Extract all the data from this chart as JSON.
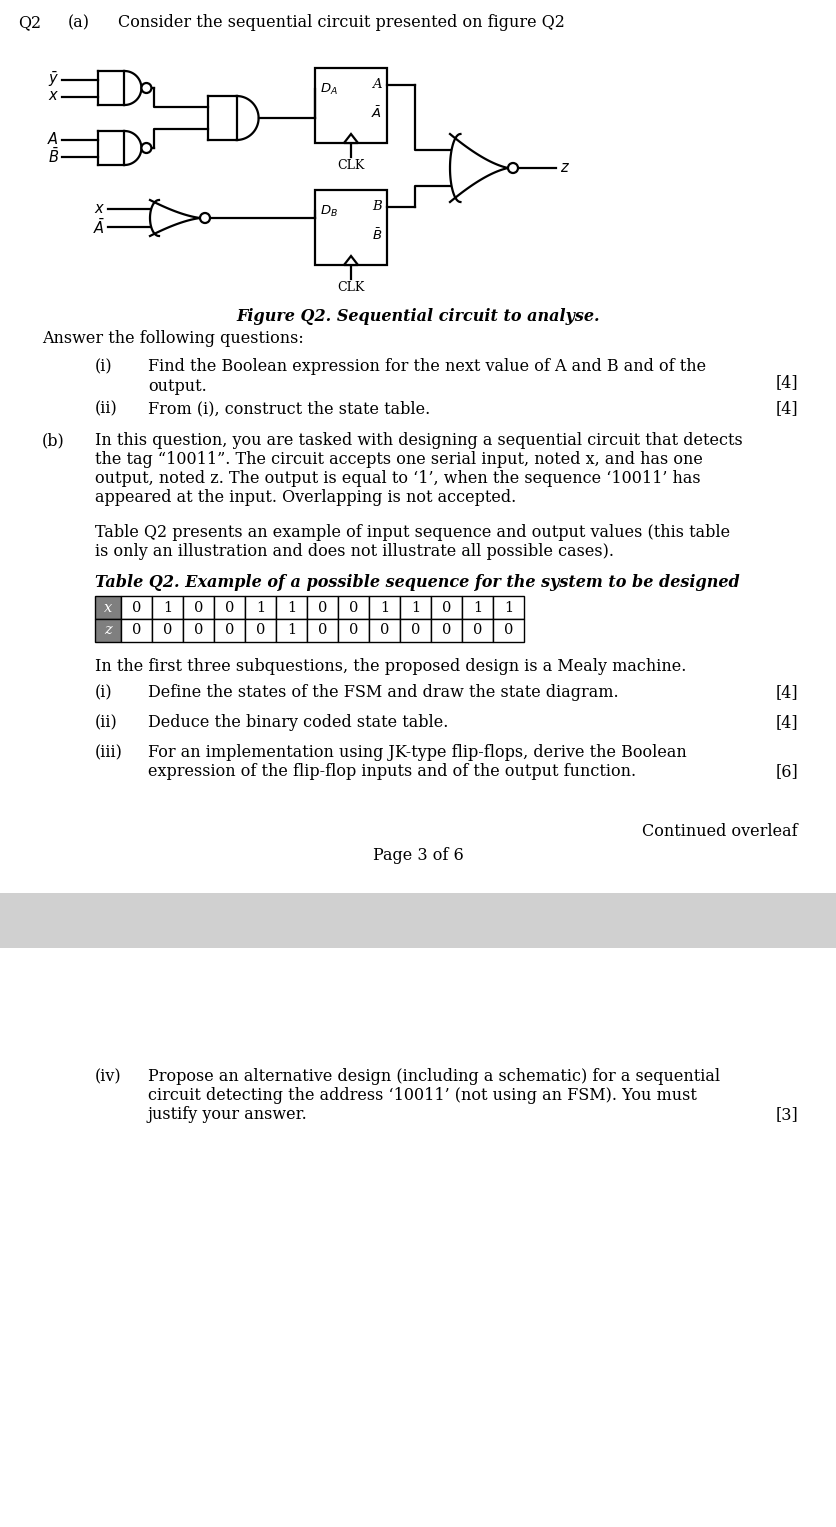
{
  "title_q": "Q2",
  "title_a": "(a)",
  "title_text": "Consider the sequential circuit presented on figure Q2",
  "fig_caption": "Figure Q2. Sequential circuit to analyse.",
  "answer_following": "Answer the following questions:",
  "q_i_label": "(i)",
  "q_i_text": "Find the Boolean expression for the next value of A and B and of the\noutput.",
  "q_i_marks": "[4]",
  "q_ii_label": "(ii)",
  "q_ii_text": "From (i), construct the state table.",
  "q_ii_marks": "[4]",
  "b_label": "(b)",
  "b_text_line1": "In this question, you are tasked with designing a sequential circuit that detects",
  "b_text_line2": "the tag “10011”. The circuit accepts one serial input, noted x, and has one",
  "b_text_line3": "output, noted z. The output is equal to ‘1’, when the sequence ‘10011’ has",
  "b_text_line4": "appeared at the input. Overlapping is not accepted.",
  "b_text2_line1": "Table Q2 presents an example of input sequence and output values (this table",
  "b_text2_line2": "is only an illustration and does not illustrate all possible cases).",
  "table_title": "Table Q2. Example of a possible sequence for the system to be designed",
  "table_x_label": "x",
  "table_z_label": "z",
  "table_x_values": [
    "0",
    "1",
    "0",
    "0",
    "1",
    "1",
    "0",
    "0",
    "1",
    "1",
    "0",
    "1",
    "1"
  ],
  "table_z_values": [
    "0",
    "0",
    "0",
    "0",
    "0",
    "1",
    "0",
    "0",
    "0",
    "0",
    "0",
    "0",
    "0"
  ],
  "mealy_text": "In the first three subquestions, the proposed design is a Mealy machine.",
  "b_i_label": "(i)",
  "b_i_text": "Define the states of the FSM and draw the state diagram.",
  "b_i_marks": "[4]",
  "b_ii_label": "(ii)",
  "b_ii_text": "Deduce the binary coded state table.",
  "b_ii_marks": "[4]",
  "b_iii_label": "(iii)",
  "b_iii_text_line1": "For an implementation using JK-type flip-flops, derive the Boolean",
  "b_iii_text_line2": "expression of the flip-flop inputs and of the output function.",
  "b_iii_marks": "[6]",
  "continued": "Continued overleaf",
  "page": "Page 3 of 6",
  "b_iv_label": "(iv)",
  "b_iv_text_line1": "Propose an alternative design (including a schematic) for a sequential",
  "b_iv_text_line2": "circuit detecting the address ‘10011’ (not using an FSM). You must",
  "b_iv_text_line3": "justify your answer.",
  "b_iv_marks": "[3]",
  "bg_color": "#ffffff",
  "text_color": "#000000",
  "table_header_bg": "#7f7f7f",
  "table_header_fg": "#ffffff",
  "page_break_color": "#d0d0d0",
  "lw": 1.6,
  "fs": 11.5
}
